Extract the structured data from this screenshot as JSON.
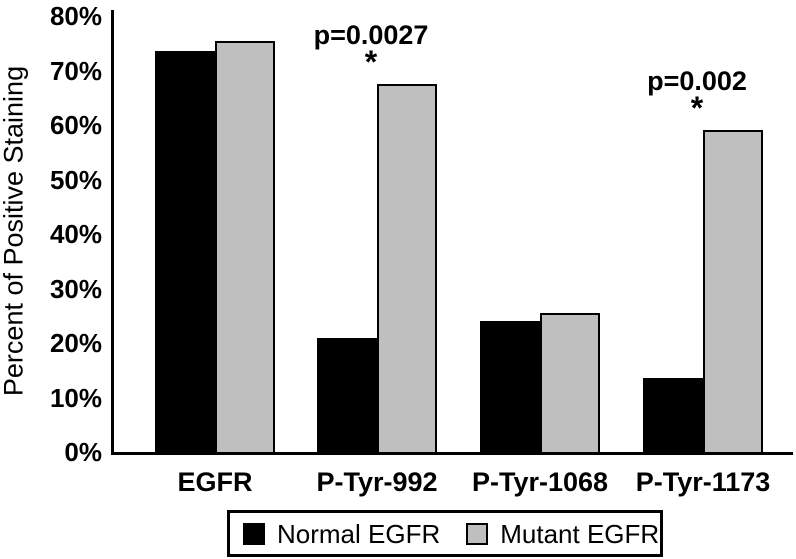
{
  "chart_data": {
    "type": "bar",
    "title": "",
    "xlabel": "",
    "ylabel": "Percent of Positive Staining",
    "ylim": [
      0,
      80
    ],
    "grid": false,
    "legend_position": "bottom",
    "ytick_labels": [
      "80%",
      "70%",
      "60%",
      "50%",
      "40%",
      "30%",
      "20%",
      "10%",
      "0%"
    ],
    "ytick_values": [
      80,
      70,
      60,
      50,
      40,
      30,
      20,
      10,
      0
    ],
    "categories": [
      "EGFR",
      "P-Tyr-992",
      "P-Tyr-1068",
      "P-Tyr-1173"
    ],
    "series": [
      {
        "name": "Normal EGFR",
        "color": "#000000",
        "values": [
          73.5,
          21,
          24,
          13.5
        ]
      },
      {
        "name": "Mutant EGFR",
        "color": "#bfbfbf",
        "values": [
          75.5,
          67.5,
          25.5,
          59
        ]
      }
    ],
    "annotations": [
      {
        "category_index": 1,
        "text": "p=0.0027",
        "star": "*"
      },
      {
        "category_index": 3,
        "text": "p=0.002",
        "star": "*"
      }
    ]
  },
  "legend": {
    "items": [
      {
        "label": "Normal EGFR",
        "color": "#000000"
      },
      {
        "label": "Mutant EGFR",
        "color": "#bfbfbf"
      }
    ]
  }
}
